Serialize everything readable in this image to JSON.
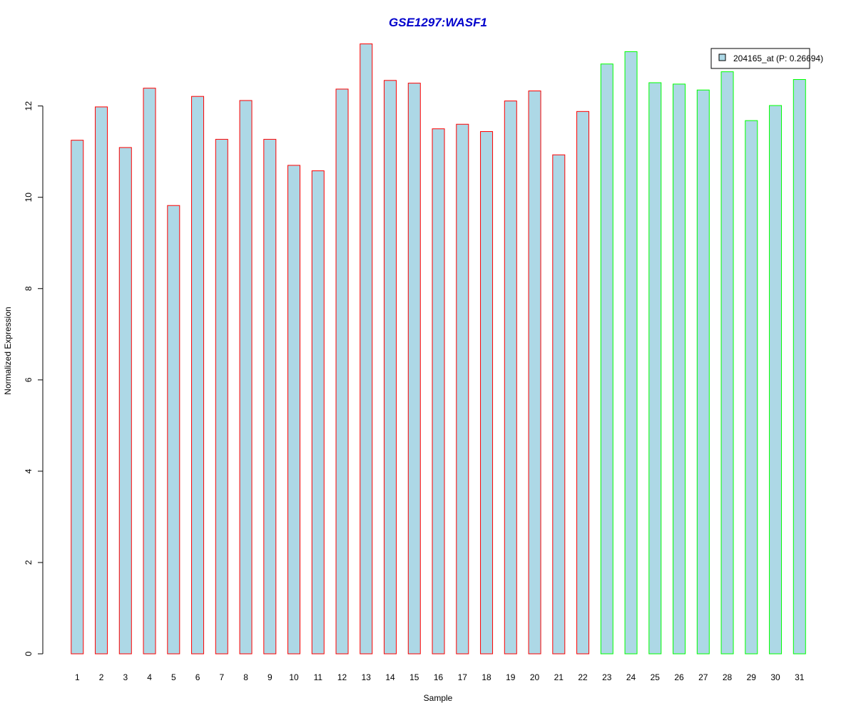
{
  "chart_data": {
    "type": "bar",
    "title": "GSE1297:WASF1",
    "xlabel": "Sample",
    "ylabel": "Normalized Expression",
    "categories": [
      "1",
      "2",
      "3",
      "4",
      "5",
      "6",
      "7",
      "8",
      "9",
      "10",
      "11",
      "12",
      "13",
      "14",
      "15",
      "16",
      "17",
      "18",
      "19",
      "20",
      "21",
      "22",
      "23",
      "24",
      "25",
      "26",
      "27",
      "28",
      "29",
      "30",
      "31"
    ],
    "series": [
      {
        "name": "204165_at (P: 0.26694)",
        "values": [
          11.25,
          11.98,
          11.09,
          12.39,
          9.82,
          12.21,
          11.27,
          12.12,
          11.27,
          10.7,
          10.58,
          12.37,
          13.36,
          12.56,
          12.5,
          11.5,
          11.6,
          11.44,
          12.11,
          12.33,
          10.93,
          11.88,
          12.92,
          13.19,
          12.51,
          12.48,
          12.35,
          12.75,
          11.68,
          12.01,
          12.58
        ]
      }
    ],
    "group_edge_colors": [
      "#ff0000",
      "#ff0000",
      "#ff0000",
      "#ff0000",
      "#ff0000",
      "#ff0000",
      "#ff0000",
      "#ff0000",
      "#ff0000",
      "#ff0000",
      "#ff0000",
      "#ff0000",
      "#ff0000",
      "#ff0000",
      "#ff0000",
      "#ff0000",
      "#ff0000",
      "#ff0000",
      "#ff0000",
      "#ff0000",
      "#ff0000",
      "#ff0000",
      "#00ff00",
      "#00ff00",
      "#00ff00",
      "#00ff00",
      "#00ff00",
      "#00ff00",
      "#00ff00",
      "#00ff00",
      "#00ff00"
    ],
    "ylim": [
      0,
      13.4
    ],
    "yticks": [
      "0",
      "2",
      "4",
      "6",
      "8",
      "10",
      "12"
    ],
    "grid": false,
    "legend_position": "top-right",
    "colors": {
      "bar_fill": "#add8e6",
      "title": "#0000cc",
      "axis": "#000000"
    }
  }
}
